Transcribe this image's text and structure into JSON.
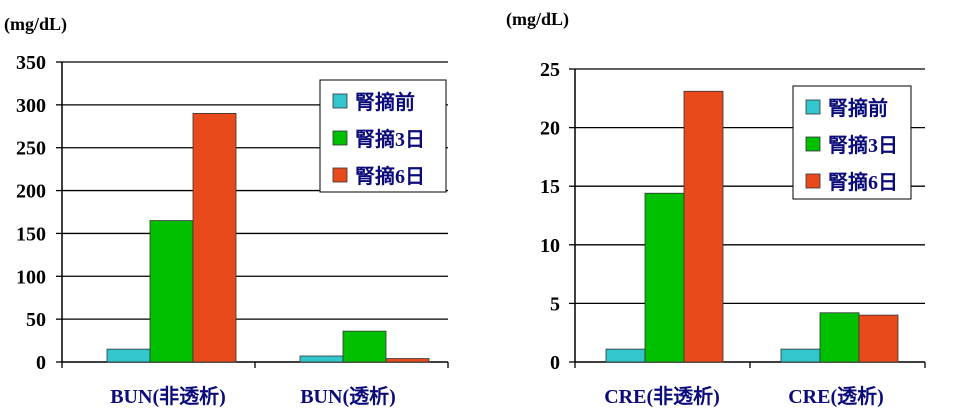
{
  "chart_data": [
    {
      "type": "bar",
      "unit_label": "(mg/dL)",
      "title": "",
      "xlabel": "",
      "ylabel": "",
      "ylim": [
        0,
        350
      ],
      "yticks": [
        0,
        50,
        100,
        150,
        200,
        250,
        300,
        350
      ],
      "grid": true,
      "legend_position": "top-right",
      "categories": [
        "BUN(非透析)",
        "BUN(透析)"
      ],
      "series": [
        {
          "name": "腎摘前",
          "color": "#33c6cc",
          "values": [
            15,
            7
          ]
        },
        {
          "name": "腎摘3日",
          "color": "#00c000",
          "values": [
            165,
            36
          ]
        },
        {
          "name": "腎摘6日",
          "color": "#e84a1c",
          "values": [
            290,
            4
          ]
        }
      ]
    },
    {
      "type": "bar",
      "unit_label": "(mg/dL)",
      "title": "",
      "xlabel": "",
      "ylabel": "",
      "ylim": [
        0,
        25
      ],
      "yticks": [
        0,
        5,
        10,
        15,
        20,
        25
      ],
      "grid": true,
      "legend_position": "top-right",
      "categories": [
        "CRE(非透析)",
        "CRE(透析)"
      ],
      "series": [
        {
          "name": "腎摘前",
          "color": "#33c6cc",
          "values": [
            1.1,
            1.1
          ]
        },
        {
          "name": "腎摘3日",
          "color": "#00c000",
          "values": [
            14.4,
            4.2
          ]
        },
        {
          "name": "腎摘6日",
          "color": "#e84a1c",
          "values": [
            23.1,
            4.0
          ]
        }
      ]
    }
  ]
}
